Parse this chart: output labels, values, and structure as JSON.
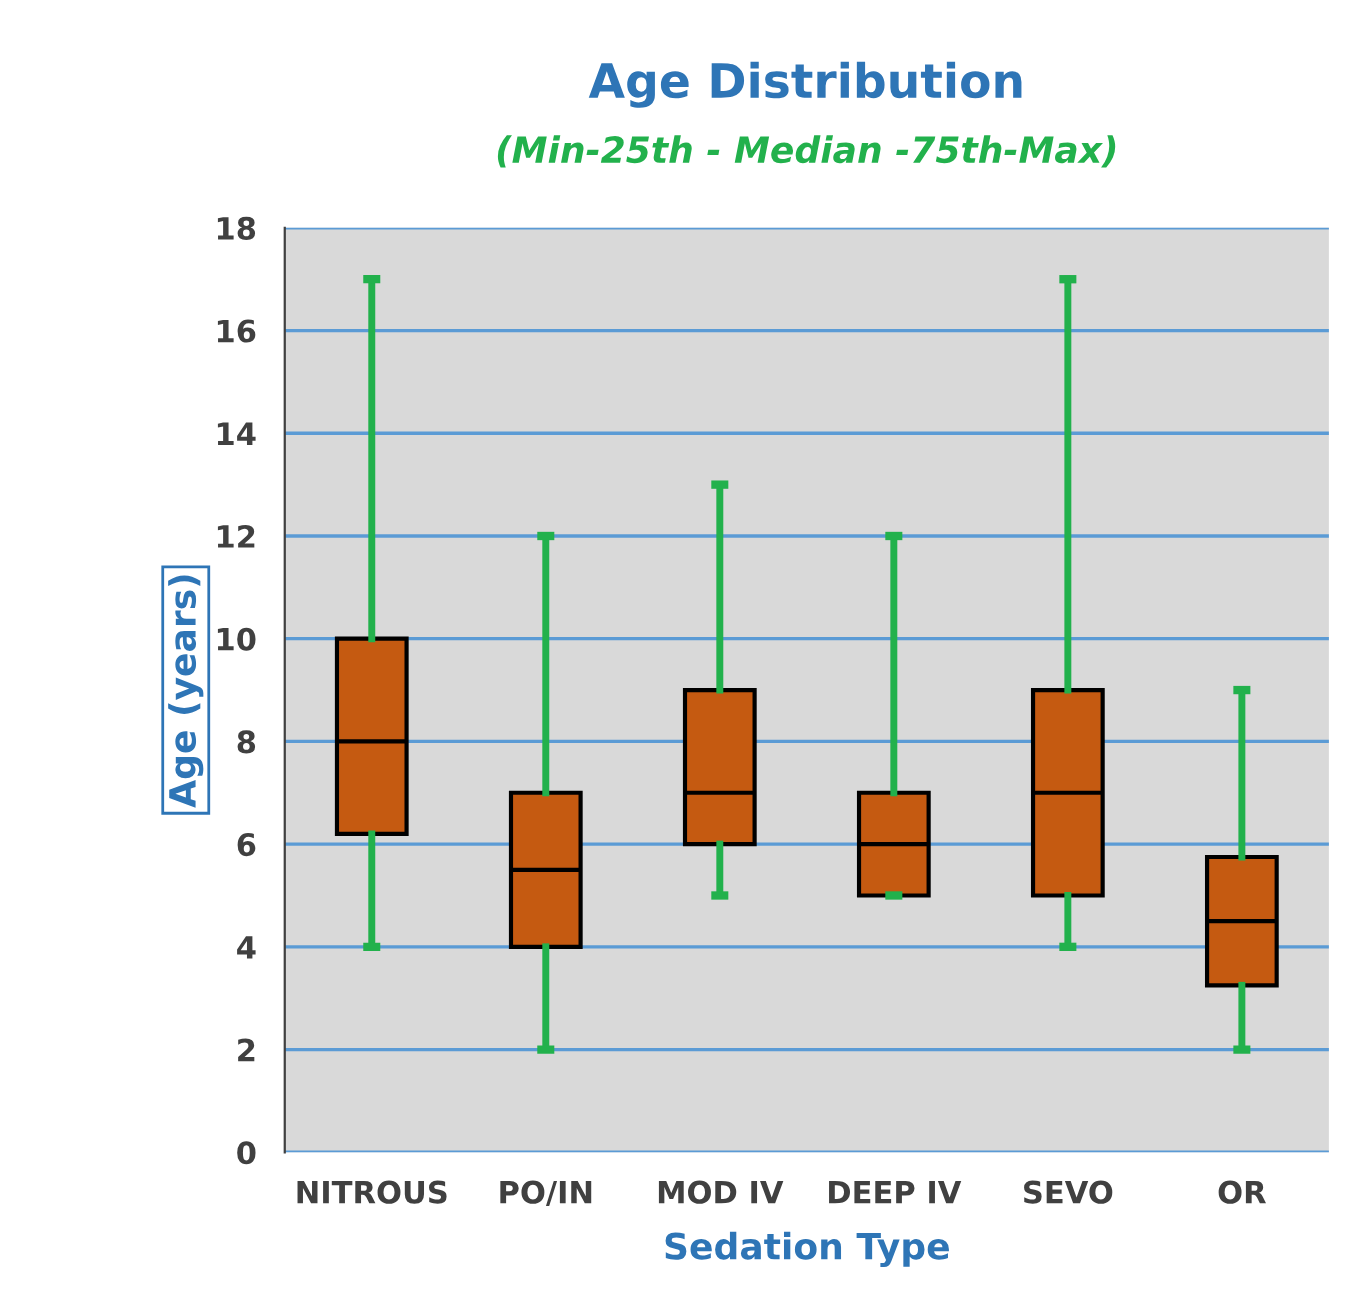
{
  "chart_data": {
    "type": "box",
    "title": "Age Distribution",
    "subtitle": "(Min-25th - Median -75th-Max)",
    "xlabel": "Sedation Type",
    "ylabel": "Age (years)",
    "categories": [
      "NITROUS",
      "PO/IN",
      "MOD IV",
      "DEEP IV",
      "SEVO",
      "OR"
    ],
    "series": [
      {
        "color": "#c55a11",
        "boxes": [
          {
            "low": 4,
            "q1": 6.2,
            "median": 8,
            "q3": 10,
            "high": 17
          },
          {
            "low": 2,
            "q1": 4,
            "median": 5.5,
            "q3": 7,
            "high": 12
          },
          {
            "low": 5,
            "q1": 6,
            "median": 7,
            "q3": 9,
            "high": 13
          },
          {
            "low": 5,
            "q1": 5,
            "median": 6,
            "q3": 7,
            "high": 12
          },
          {
            "low": 4,
            "q1": 5,
            "median": 7,
            "q3": 9,
            "high": 17
          },
          {
            "low": 2,
            "q1": 3.25,
            "median": 4.5,
            "q3": 5.75,
            "high": 9
          }
        ]
      }
    ],
    "ylim": [
      0,
      18
    ],
    "yticks": [
      0,
      2,
      4,
      6,
      8,
      10,
      12,
      14,
      16,
      18
    ],
    "grid": "y",
    "legend": false
  }
}
